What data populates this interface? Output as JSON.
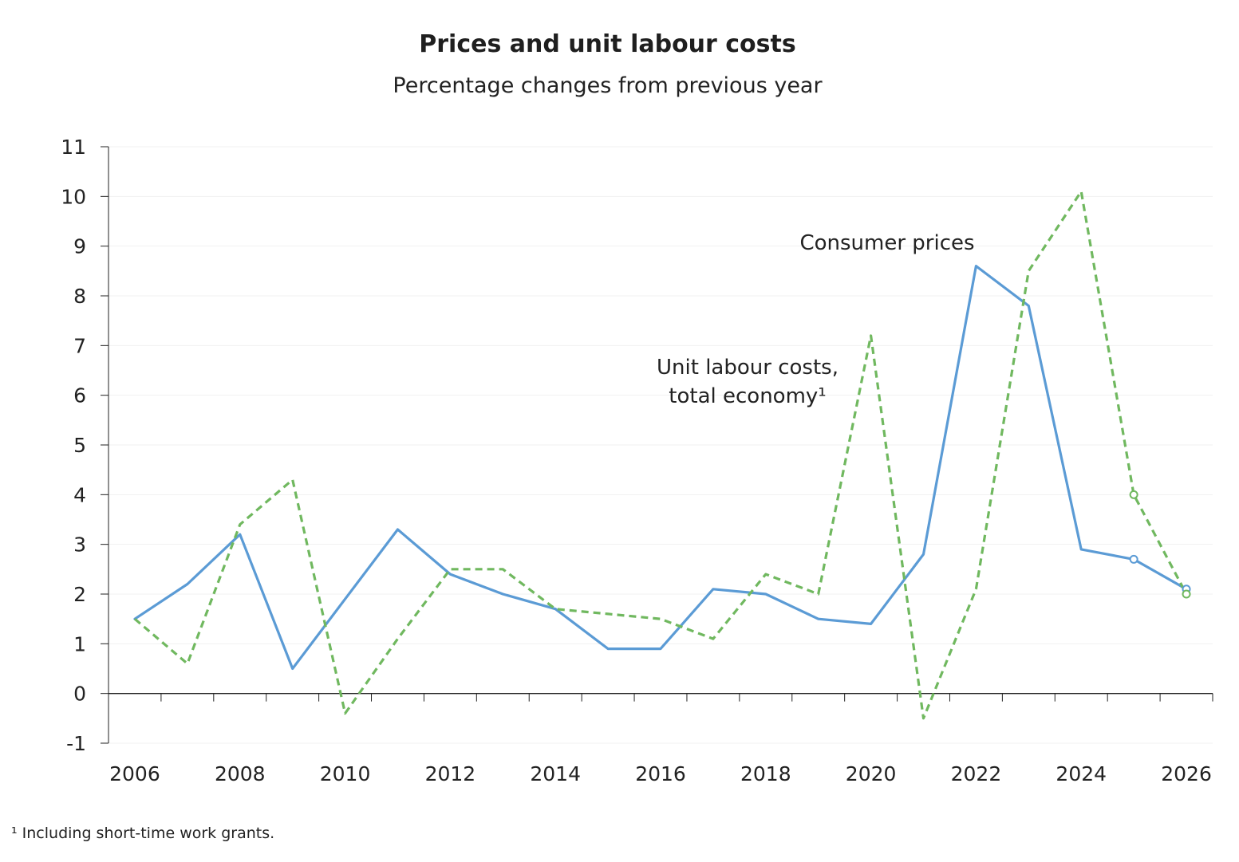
{
  "chart_data": {
    "type": "line",
    "title": "Prices and unit labour costs",
    "subtitle": "Percentage changes from previous year",
    "xlabel": "",
    "ylabel": "",
    "xlim": [
      2005.5,
      2026.5
    ],
    "ylim": [
      -1,
      11
    ],
    "x_ticks": [
      2006,
      2008,
      2010,
      2012,
      2014,
      2016,
      2018,
      2020,
      2022,
      2024,
      2026
    ],
    "y_ticks": [
      -1,
      0,
      1,
      2,
      3,
      4,
      5,
      6,
      7,
      8,
      9,
      10,
      11
    ],
    "grid": true,
    "x": [
      2006,
      2007,
      2008,
      2009,
      2010,
      2011,
      2012,
      2013,
      2014,
      2015,
      2016,
      2017,
      2018,
      2019,
      2020,
      2021,
      2022,
      2023,
      2024,
      2025,
      2026
    ],
    "series": [
      {
        "name": "Consumer prices",
        "color": "#5b9bd5",
        "style": "solid",
        "values": [
          1.5,
          2.2,
          3.2,
          0.5,
          1.9,
          3.3,
          2.4,
          2.0,
          1.7,
          0.9,
          0.9,
          2.1,
          2.0,
          1.5,
          1.4,
          2.8,
          8.6,
          7.8,
          2.9,
          2.7,
          2.1
        ],
        "forecast_markers": [
          2025,
          2026
        ]
      },
      {
        "name": "Unit labour costs, total economy¹",
        "color": "#70b85f",
        "style": "dashed",
        "values": [
          1.5,
          0.6,
          3.4,
          4.3,
          -0.4,
          1.1,
          2.5,
          2.5,
          1.7,
          1.6,
          1.5,
          1.1,
          2.4,
          2.0,
          7.2,
          -0.5,
          2.1,
          8.5,
          10.1,
          4.0,
          2.0
        ],
        "forecast_markers": [
          2025,
          2026
        ]
      }
    ],
    "annotations": [
      {
        "text": "Consumer prices"
      },
      {
        "text_line1": "Unit labour costs,",
        "text_line2": "total economy¹"
      }
    ],
    "footnote": "¹ Including short-time work grants."
  }
}
